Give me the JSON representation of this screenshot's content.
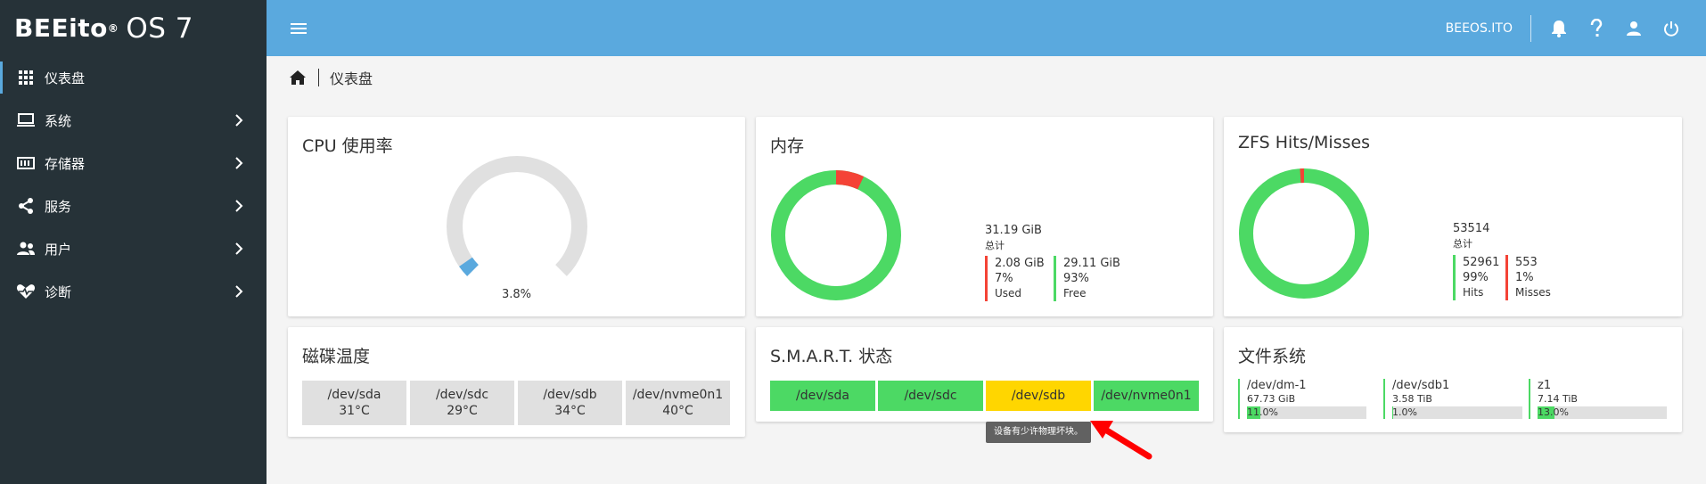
{
  "brand": {
    "name": "BEEito",
    "registered": "®",
    "os": "OS 7"
  },
  "sidebar": {
    "items": [
      {
        "label": "仪表盘",
        "icon": "grid-icon",
        "active": true
      },
      {
        "label": "系统",
        "icon": "laptop-icon"
      },
      {
        "label": "存储器",
        "icon": "storage-icon"
      },
      {
        "label": "服务",
        "icon": "share-icon"
      },
      {
        "label": "用户",
        "icon": "users-icon"
      },
      {
        "label": "诊断",
        "icon": "heartbeat-icon"
      }
    ]
  },
  "topbar": {
    "hostname": "BEEOS.ITO",
    "icons": [
      "bell-icon",
      "help-icon",
      "user-icon",
      "power-icon"
    ]
  },
  "breadcrumb": {
    "current": "仪表盘"
  },
  "cpu": {
    "title": "CPU 使用率",
    "usage_label": "3.8%",
    "usage": 0.038
  },
  "memory": {
    "title": "内存",
    "total_value": "31.19 GiB",
    "total_label": "总计",
    "used": {
      "value": "2.08 GiB",
      "percent": "7%",
      "label": "Used",
      "fraction": 0.07
    },
    "free": {
      "value": "29.11 GiB",
      "percent": "93%",
      "label": "Free"
    }
  },
  "zfs": {
    "title": "ZFS Hits/Misses",
    "total_value": "53514",
    "total_label": "总计",
    "hits": {
      "value": "52961",
      "percent": "99%",
      "label": "Hits"
    },
    "misses": {
      "value": "553",
      "percent": "1%",
      "label": "Misses",
      "fraction": 0.01
    }
  },
  "disk_temp": {
    "title": "磁碟温度",
    "disks": [
      {
        "name": "/dev/sda",
        "temp": "31°C"
      },
      {
        "name": "/dev/sdc",
        "temp": "29°C"
      },
      {
        "name": "/dev/sdb",
        "temp": "34°C"
      },
      {
        "name": "/dev/nvme0n1",
        "temp": "40°C"
      }
    ]
  },
  "smart": {
    "title": "S.M.A.R.T. 状态",
    "disks": [
      {
        "name": "/dev/sda",
        "status": "good"
      },
      {
        "name": "/dev/sdc",
        "status": "good"
      },
      {
        "name": "/dev/sdb",
        "status": "warning"
      },
      {
        "name": "/dev/nvme0n1",
        "status": "good"
      }
    ],
    "tooltip": "设备有少许物理坏块。"
  },
  "filesystems": {
    "title": "文件系统",
    "items": [
      {
        "name": "/dev/dm-1",
        "size": "67.73 GiB",
        "percent": "11.0%",
        "fraction": 0.11
      },
      {
        "name": "/dev/sdb1",
        "size": "3.58 TiB",
        "percent": "1.0%",
        "fraction": 0.01
      },
      {
        "name": "z1",
        "size": "7.14 TiB",
        "percent": "13.0%",
        "fraction": 0.13
      }
    ]
  },
  "colors": {
    "sidebar_bg": "#263238",
    "topbar_bg": "#5aa9de",
    "good": "#4cd964",
    "bad": "#f44336",
    "warning": "#ffd600",
    "gauge_track": "#e0e0e0",
    "gauge_fill": "#5aa9de"
  }
}
